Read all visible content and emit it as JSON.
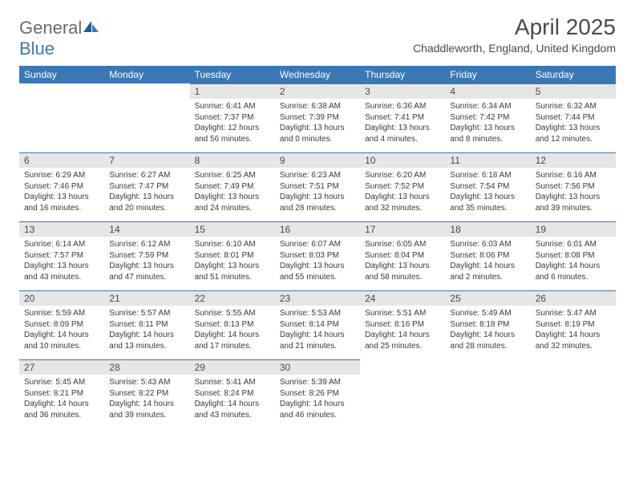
{
  "brand": {
    "part1": "General",
    "part2": "Blue",
    "color_general": "#6b6b6b",
    "color_blue": "#3a78b5"
  },
  "title": "April 2025",
  "location": "Chaddleworth, England, United Kingdom",
  "header_bg": "#3a78b5",
  "header_fg": "#ffffff",
  "daynum_bg": "#e6e6e6",
  "border_color": "#3a78b5",
  "columns": [
    "Sunday",
    "Monday",
    "Tuesday",
    "Wednesday",
    "Thursday",
    "Friday",
    "Saturday"
  ],
  "weeks": [
    [
      null,
      null,
      {
        "n": "1",
        "sr": "Sunrise: 6:41 AM",
        "ss": "Sunset: 7:37 PM",
        "dl": "Daylight: 12 hours and 56 minutes."
      },
      {
        "n": "2",
        "sr": "Sunrise: 6:38 AM",
        "ss": "Sunset: 7:39 PM",
        "dl": "Daylight: 13 hours and 0 minutes."
      },
      {
        "n": "3",
        "sr": "Sunrise: 6:36 AM",
        "ss": "Sunset: 7:41 PM",
        "dl": "Daylight: 13 hours and 4 minutes."
      },
      {
        "n": "4",
        "sr": "Sunrise: 6:34 AM",
        "ss": "Sunset: 7:42 PM",
        "dl": "Daylight: 13 hours and 8 minutes."
      },
      {
        "n": "5",
        "sr": "Sunrise: 6:32 AM",
        "ss": "Sunset: 7:44 PM",
        "dl": "Daylight: 13 hours and 12 minutes."
      }
    ],
    [
      {
        "n": "6",
        "sr": "Sunrise: 6:29 AM",
        "ss": "Sunset: 7:46 PM",
        "dl": "Daylight: 13 hours and 16 minutes."
      },
      {
        "n": "7",
        "sr": "Sunrise: 6:27 AM",
        "ss": "Sunset: 7:47 PM",
        "dl": "Daylight: 13 hours and 20 minutes."
      },
      {
        "n": "8",
        "sr": "Sunrise: 6:25 AM",
        "ss": "Sunset: 7:49 PM",
        "dl": "Daylight: 13 hours and 24 minutes."
      },
      {
        "n": "9",
        "sr": "Sunrise: 6:23 AM",
        "ss": "Sunset: 7:51 PM",
        "dl": "Daylight: 13 hours and 28 minutes."
      },
      {
        "n": "10",
        "sr": "Sunrise: 6:20 AM",
        "ss": "Sunset: 7:52 PM",
        "dl": "Daylight: 13 hours and 32 minutes."
      },
      {
        "n": "11",
        "sr": "Sunrise: 6:18 AM",
        "ss": "Sunset: 7:54 PM",
        "dl": "Daylight: 13 hours and 35 minutes."
      },
      {
        "n": "12",
        "sr": "Sunrise: 6:16 AM",
        "ss": "Sunset: 7:56 PM",
        "dl": "Daylight: 13 hours and 39 minutes."
      }
    ],
    [
      {
        "n": "13",
        "sr": "Sunrise: 6:14 AM",
        "ss": "Sunset: 7:57 PM",
        "dl": "Daylight: 13 hours and 43 minutes."
      },
      {
        "n": "14",
        "sr": "Sunrise: 6:12 AM",
        "ss": "Sunset: 7:59 PM",
        "dl": "Daylight: 13 hours and 47 minutes."
      },
      {
        "n": "15",
        "sr": "Sunrise: 6:10 AM",
        "ss": "Sunset: 8:01 PM",
        "dl": "Daylight: 13 hours and 51 minutes."
      },
      {
        "n": "16",
        "sr": "Sunrise: 6:07 AM",
        "ss": "Sunset: 8:03 PM",
        "dl": "Daylight: 13 hours and 55 minutes."
      },
      {
        "n": "17",
        "sr": "Sunrise: 6:05 AM",
        "ss": "Sunset: 8:04 PM",
        "dl": "Daylight: 13 hours and 58 minutes."
      },
      {
        "n": "18",
        "sr": "Sunrise: 6:03 AM",
        "ss": "Sunset: 8:06 PM",
        "dl": "Daylight: 14 hours and 2 minutes."
      },
      {
        "n": "19",
        "sr": "Sunrise: 6:01 AM",
        "ss": "Sunset: 8:08 PM",
        "dl": "Daylight: 14 hours and 6 minutes."
      }
    ],
    [
      {
        "n": "20",
        "sr": "Sunrise: 5:59 AM",
        "ss": "Sunset: 8:09 PM",
        "dl": "Daylight: 14 hours and 10 minutes."
      },
      {
        "n": "21",
        "sr": "Sunrise: 5:57 AM",
        "ss": "Sunset: 8:11 PM",
        "dl": "Daylight: 14 hours and 13 minutes."
      },
      {
        "n": "22",
        "sr": "Sunrise: 5:55 AM",
        "ss": "Sunset: 8:13 PM",
        "dl": "Daylight: 14 hours and 17 minutes."
      },
      {
        "n": "23",
        "sr": "Sunrise: 5:53 AM",
        "ss": "Sunset: 8:14 PM",
        "dl": "Daylight: 14 hours and 21 minutes."
      },
      {
        "n": "24",
        "sr": "Sunrise: 5:51 AM",
        "ss": "Sunset: 8:16 PM",
        "dl": "Daylight: 14 hours and 25 minutes."
      },
      {
        "n": "25",
        "sr": "Sunrise: 5:49 AM",
        "ss": "Sunset: 8:18 PM",
        "dl": "Daylight: 14 hours and 28 minutes."
      },
      {
        "n": "26",
        "sr": "Sunrise: 5:47 AM",
        "ss": "Sunset: 8:19 PM",
        "dl": "Daylight: 14 hours and 32 minutes."
      }
    ],
    [
      {
        "n": "27",
        "sr": "Sunrise: 5:45 AM",
        "ss": "Sunset: 8:21 PM",
        "dl": "Daylight: 14 hours and 36 minutes."
      },
      {
        "n": "28",
        "sr": "Sunrise: 5:43 AM",
        "ss": "Sunset: 8:22 PM",
        "dl": "Daylight: 14 hours and 39 minutes."
      },
      {
        "n": "29",
        "sr": "Sunrise: 5:41 AM",
        "ss": "Sunset: 8:24 PM",
        "dl": "Daylight: 14 hours and 43 minutes."
      },
      {
        "n": "30",
        "sr": "Sunrise: 5:39 AM",
        "ss": "Sunset: 8:26 PM",
        "dl": "Daylight: 14 hours and 46 minutes."
      },
      null,
      null,
      null
    ]
  ]
}
